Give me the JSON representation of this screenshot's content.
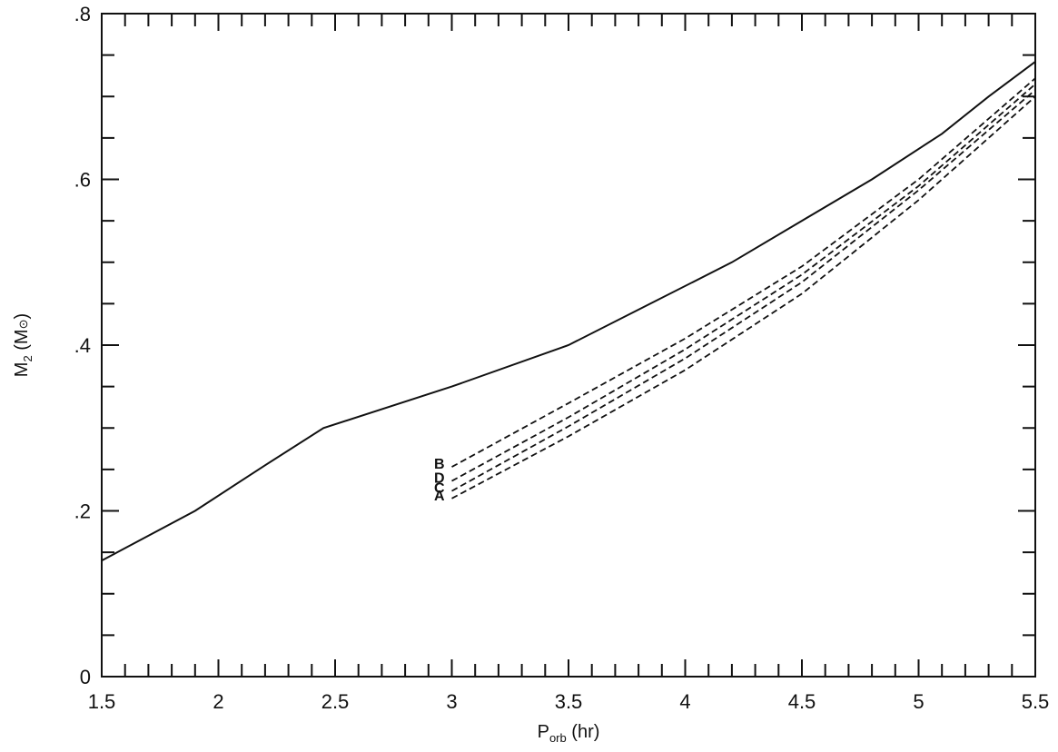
{
  "chart_data": {
    "type": "line",
    "title": "",
    "xlabel": {
      "main": "P",
      "sub": "orb",
      "rest": " (hr)"
    },
    "ylabel": {
      "main": "M",
      "sub": "2",
      "rest": " (M",
      "symbol": "⊙",
      "close": ")"
    },
    "xlim": [
      1.5,
      5.5
    ],
    "ylim": [
      0,
      0.8
    ],
    "x_ticks": [
      {
        "value": 1.5,
        "label": "1.5"
      },
      {
        "value": 2,
        "label": "2"
      },
      {
        "value": 2.5,
        "label": "2.5"
      },
      {
        "value": 3,
        "label": "3"
      },
      {
        "value": 3.5,
        "label": "3.5"
      },
      {
        "value": 4,
        "label": "4"
      },
      {
        "value": 4.5,
        "label": "4.5"
      },
      {
        "value": 5,
        "label": "5"
      },
      {
        "value": 5.5,
        "label": "5.5"
      }
    ],
    "y_ticks": [
      {
        "value": 0,
        "label": "0"
      },
      {
        "value": 0.2,
        "label": ".2"
      },
      {
        "value": 0.4,
        "label": ".4"
      },
      {
        "value": 0.6,
        "label": ".6"
      },
      {
        "value": 0.8,
        "label": ".8"
      }
    ],
    "x_minor_step": 0.1,
    "y_minor_step": 0.05,
    "grid": false,
    "series": [
      {
        "style": "solid",
        "x": [
          1.5,
          1.58,
          1.9,
          2.2,
          2.45,
          3.0,
          3.5,
          3.85,
          4.2,
          4.5,
          4.8,
          5.1,
          5.3,
          5.5
        ],
        "y": [
          0.14,
          0.152,
          0.2,
          0.255,
          0.3,
          0.35,
          0.4,
          0.45,
          0.5,
          0.55,
          0.6,
          0.655,
          0.7,
          0.742
        ]
      },
      {
        "name": "B",
        "style": "dashed",
        "x": [
          3.0,
          3.5,
          4.0,
          4.5,
          5.0,
          5.5
        ],
        "y": [
          0.253,
          0.33,
          0.408,
          0.495,
          0.6,
          0.722
        ]
      },
      {
        "name": "D",
        "style": "dashed",
        "x": [
          3.0,
          3.5,
          4.0,
          4.5,
          5.0,
          5.5
        ],
        "y": [
          0.236,
          0.313,
          0.395,
          0.485,
          0.592,
          0.715
        ]
      },
      {
        "name": "C",
        "style": "dashed",
        "x": [
          3.0,
          3.5,
          4.0,
          4.5,
          5.0,
          5.5
        ],
        "y": [
          0.224,
          0.302,
          0.384,
          0.476,
          0.587,
          0.708
        ]
      },
      {
        "name": "A",
        "style": "dashed",
        "x": [
          3.0,
          3.5,
          4.0,
          4.5,
          5.0,
          5.5
        ],
        "y": [
          0.215,
          0.29,
          0.37,
          0.462,
          0.575,
          0.7
        ]
      }
    ]
  }
}
